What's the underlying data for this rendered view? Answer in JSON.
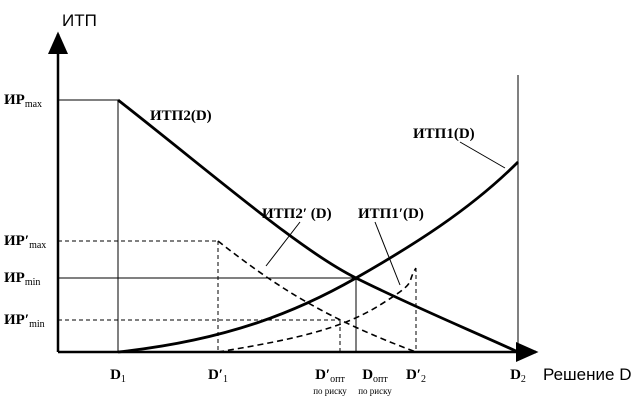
{
  "axes": {
    "y_title": "ИТП",
    "x_title": "Решение D"
  },
  "y_labels": [
    {
      "main": "ИР",
      "sub": "max"
    },
    {
      "main": "ИР′",
      "sub": "max"
    },
    {
      "main": "ИР",
      "sub": "min"
    },
    {
      "main": "ИР′",
      "sub": "min"
    }
  ],
  "x_labels": [
    {
      "main": "D",
      "sub": "1"
    },
    {
      "main": "D′",
      "sub": "1"
    },
    {
      "main": "D′",
      "sub": "опт",
      "note": "по риску"
    },
    {
      "main": "D",
      "sub": "опт",
      "note": "по риску"
    },
    {
      "main": "D′",
      "sub": "2"
    },
    {
      "main": "D",
      "sub": "2"
    }
  ],
  "curves": [
    {
      "label": "ИТП2(D)"
    },
    {
      "label": "ИТП1(D)"
    },
    {
      "label": "ИТП2′ (D)"
    },
    {
      "label": "ИТП1′(D)"
    }
  ]
}
